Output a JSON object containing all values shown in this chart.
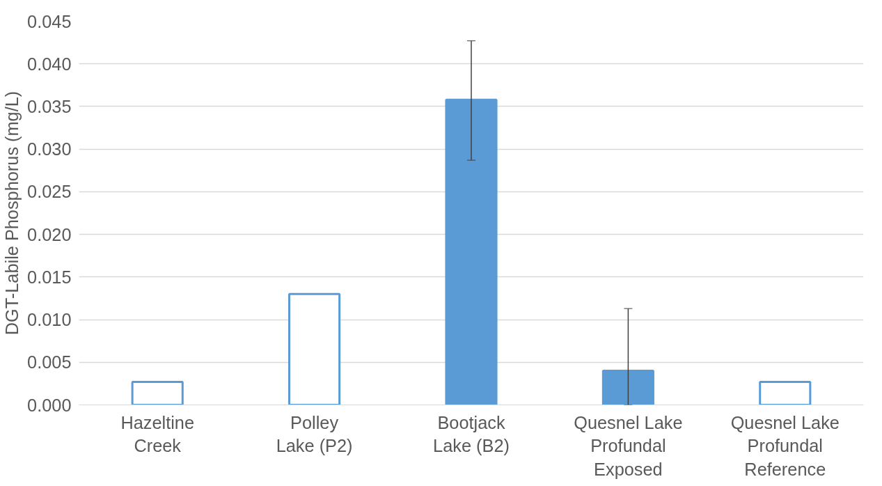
{
  "chart_data": {
    "type": "bar",
    "ylabel": "DGT-Labile Phosphorus (mg/L)",
    "categories": [
      "Hazeltine\nCreek",
      "Polley\nLake (P2)",
      "Bootjack\nLake (B2)",
      "Quesnel Lake\nProfundal\nExposed",
      "Quesnel Lake\nProfundal\nReference"
    ],
    "values": [
      0.0027,
      0.013,
      0.0358,
      0.004,
      0.0027
    ],
    "errors": [
      null,
      null,
      [
        0.0287,
        0.0427
      ],
      [
        0.0,
        0.0113
      ],
      null
    ],
    "color": "#5b9bd5",
    "colors": [
      "#ffffff",
      "#ffffff",
      "#5b9bd5",
      "#5b9bd5",
      "#ffffff"
    ],
    "ylim": [
      0,
      0.045
    ],
    "yticks": [
      {
        "value": 0,
        "label": "0.000"
      },
      {
        "value": 0.005,
        "label": "0.005"
      },
      {
        "value": 0.01,
        "label": "0.010"
      },
      {
        "value": 0.015,
        "label": "0.015"
      },
      {
        "value": 0.02,
        "label": "0.020"
      },
      {
        "value": 0.025,
        "label": "0.025"
      },
      {
        "value": 0.03,
        "label": "0.030"
      },
      {
        "value": 0.035,
        "label": "0.035"
      },
      {
        "value": 0.04,
        "label": "0.040"
      },
      {
        "value": 0.045,
        "label": "0.045"
      }
    ],
    "grid": "y"
  }
}
